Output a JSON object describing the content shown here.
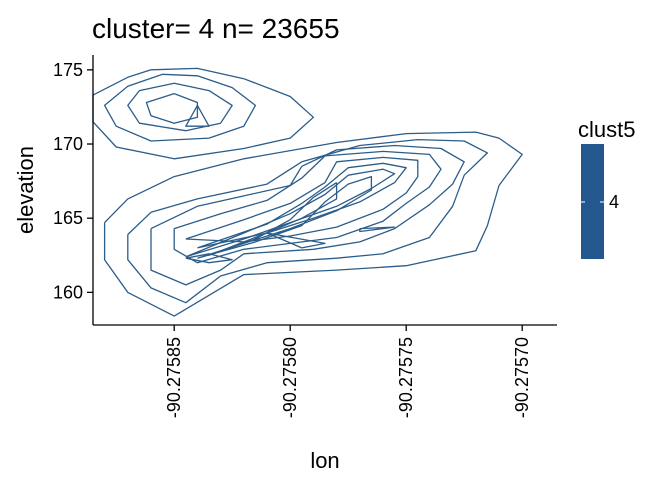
{
  "chart_data": {
    "type": "contour",
    "title": "cluster= 4 n= 23655",
    "xlabel": "lon",
    "ylabel": "elevation",
    "xlim": [
      -90.275885,
      -90.275685
    ],
    "ylim": [
      157.8,
      176.0
    ],
    "x_ticks": [
      -90.27585,
      -90.2758,
      -90.27575,
      -90.2757
    ],
    "x_tick_labels": [
      "-90.27585",
      "-90.27580",
      "-90.27575",
      "-90.27570"
    ],
    "y_ticks": [
      160,
      165,
      170,
      175
    ],
    "y_tick_labels": [
      "160",
      "165",
      "170",
      "175"
    ],
    "grid": false,
    "line_color": "#2b5d8a",
    "legend": {
      "title": "clust5",
      "tick_label": "4",
      "position": "right",
      "color": "#24578e"
    },
    "contours": [
      [
        [
          -90.27586,
          175.0
        ],
        [
          -90.27584,
          175.1
        ],
        [
          -90.27582,
          174.4
        ],
        [
          -90.2758,
          173.2
        ],
        [
          -90.27579,
          171.8
        ],
        [
          -90.2758,
          170.4
        ],
        [
          -90.27582,
          169.7
        ],
        [
          -90.27585,
          169.0
        ],
        [
          -90.275875,
          169.8
        ],
        [
          -90.275885,
          171.5
        ],
        [
          -90.275885,
          173.3
        ],
        [
          -90.27587,
          174.5
        ],
        [
          -90.27586,
          175.0
        ]
      ],
      [
        [
          -90.275855,
          174.7
        ],
        [
          -90.27584,
          174.6
        ],
        [
          -90.275825,
          173.8
        ],
        [
          -90.275815,
          172.6
        ],
        [
          -90.27582,
          171.2
        ],
        [
          -90.275835,
          170.4
        ],
        [
          -90.27586,
          170.2
        ],
        [
          -90.275875,
          171.2
        ],
        [
          -90.27588,
          172.6
        ],
        [
          -90.27587,
          173.9
        ],
        [
          -90.275855,
          174.7
        ]
      ],
      [
        [
          -90.27585,
          174.1
        ],
        [
          -90.275835,
          173.6
        ],
        [
          -90.275825,
          172.6
        ],
        [
          -90.27583,
          171.4
        ],
        [
          -90.275845,
          170.9
        ],
        [
          -90.275865,
          171.4
        ],
        [
          -90.27587,
          172.6
        ],
        [
          -90.275865,
          173.6
        ],
        [
          -90.27585,
          174.1
        ]
      ],
      [
        [
          -90.27585,
          173.4
        ],
        [
          -90.27584,
          172.8
        ],
        [
          -90.27584,
          171.8
        ],
        [
          -90.27585,
          171.4
        ],
        [
          -90.27586,
          171.9
        ],
        [
          -90.275862,
          172.8
        ],
        [
          -90.27585,
          173.4
        ]
      ],
      [
        [
          -90.27584,
          172.6
        ],
        [
          -90.275835,
          171.2
        ],
        [
          -90.275845,
          171.2
        ],
        [
          -90.27584,
          172.6
        ]
      ],
      [
        [
          -90.27588,
          164.7
        ],
        [
          -90.27587,
          166.3
        ],
        [
          -90.27585,
          167.8
        ],
        [
          -90.27582,
          169.0
        ],
        [
          -90.27578,
          170.1
        ],
        [
          -90.27575,
          170.7
        ],
        [
          -90.27572,
          170.8
        ],
        [
          -90.27571,
          170.4
        ],
        [
          -90.2757,
          169.3
        ],
        [
          -90.27571,
          167.2
        ],
        [
          -90.275715,
          164.5
        ],
        [
          -90.27572,
          162.8
        ],
        [
          -90.27575,
          161.8
        ],
        [
          -90.27578,
          161.5
        ],
        [
          -90.27582,
          161.2
        ],
        [
          -90.27585,
          158.4
        ],
        [
          -90.27587,
          160.0
        ],
        [
          -90.27588,
          162.2
        ],
        [
          -90.27588,
          164.7
        ]
      ],
      [
        [
          -90.27587,
          163.9
        ],
        [
          -90.27586,
          165.4
        ],
        [
          -90.27584,
          166.3
        ],
        [
          -90.27581,
          167.3
        ],
        [
          -90.275795,
          168.8
        ],
        [
          -90.27577,
          169.9
        ],
        [
          -90.275745,
          170.3
        ],
        [
          -90.275725,
          170.2
        ],
        [
          -90.275715,
          169.4
        ],
        [
          -90.275725,
          167.9
        ],
        [
          -90.27573,
          165.8
        ],
        [
          -90.27574,
          163.7
        ],
        [
          -90.27576,
          162.6
        ],
        [
          -90.27578,
          162.3
        ],
        [
          -90.27581,
          162.0
        ],
        [
          -90.27583,
          161.1
        ],
        [
          -90.275845,
          159.3
        ],
        [
          -90.27586,
          160.3
        ],
        [
          -90.27587,
          162.2
        ],
        [
          -90.27587,
          163.9
        ]
      ],
      [
        [
          -90.27586,
          164.3
        ],
        [
          -90.27584,
          165.8
        ],
        [
          -90.27582,
          166.5
        ],
        [
          -90.2758,
          167.2
        ],
        [
          -90.275795,
          168.5
        ],
        [
          -90.27578,
          169.6
        ],
        [
          -90.275755,
          169.9
        ],
        [
          -90.275735,
          169.7
        ],
        [
          -90.275725,
          168.8
        ],
        [
          -90.27573,
          167.3
        ],
        [
          -90.27574,
          165.9
        ],
        [
          -90.275755,
          164.3
        ],
        [
          -90.27577,
          163.4
        ],
        [
          -90.27579,
          162.9
        ],
        [
          -90.27582,
          162.6
        ],
        [
          -90.27583,
          161.5
        ],
        [
          -90.275845,
          160.5
        ],
        [
          -90.27586,
          161.5
        ],
        [
          -90.27586,
          164.3
        ]
      ],
      [
        [
          -90.27585,
          164.3
        ],
        [
          -90.27583,
          165.3
        ],
        [
          -90.27581,
          166.2
        ],
        [
          -90.275795,
          167.7
        ],
        [
          -90.275785,
          169.2
        ],
        [
          -90.27576,
          169.5
        ],
        [
          -90.27574,
          169.3
        ],
        [
          -90.275735,
          168.3
        ],
        [
          -90.27574,
          167.1
        ],
        [
          -90.27575,
          166.0
        ],
        [
          -90.27576,
          164.8
        ],
        [
          -90.27578,
          163.7
        ],
        [
          -90.2758,
          163.3
        ],
        [
          -90.27582,
          162.9
        ],
        [
          -90.27584,
          162.0
        ],
        [
          -90.27585,
          162.9
        ],
        [
          -90.27585,
          164.3
        ]
      ],
      [
        [
          -90.275845,
          163.6
        ],
        [
          -90.27582,
          164.9
        ],
        [
          -90.2758,
          166.0
        ],
        [
          -90.275785,
          167.4
        ],
        [
          -90.27578,
          168.8
        ],
        [
          -90.27576,
          169.1
        ],
        [
          -90.275745,
          168.9
        ],
        [
          -90.275745,
          167.8
        ],
        [
          -90.27575,
          166.7
        ],
        [
          -90.27576,
          165.6
        ],
        [
          -90.27578,
          164.4
        ],
        [
          -90.2758,
          163.8
        ],
        [
          -90.27582,
          163.4
        ],
        [
          -90.275845,
          163.6
        ]
      ],
      [
        [
          -90.27584,
          163.0
        ],
        [
          -90.27581,
          164.6
        ],
        [
          -90.275795,
          166.0
        ],
        [
          -90.275785,
          167.1
        ],
        [
          -90.275775,
          168.4
        ],
        [
          -90.27576,
          168.7
        ],
        [
          -90.27575,
          168.4
        ],
        [
          -90.275755,
          167.4
        ],
        [
          -90.27577,
          166.1
        ],
        [
          -90.27579,
          165.0
        ],
        [
          -90.27581,
          164.0
        ],
        [
          -90.27584,
          163.0
        ]
      ],
      [
        [
          -90.275845,
          162.4
        ],
        [
          -90.27582,
          164.0
        ],
        [
          -90.2758,
          165.3
        ],
        [
          -90.275785,
          166.6
        ],
        [
          -90.275775,
          167.9
        ],
        [
          -90.27576,
          168.3
        ],
        [
          -90.275755,
          168.0
        ],
        [
          -90.275765,
          167.0
        ],
        [
          -90.27578,
          165.8
        ],
        [
          -90.2758,
          164.7
        ],
        [
          -90.27582,
          163.6
        ],
        [
          -90.275845,
          162.4
        ]
      ],
      [
        [
          -90.27584,
          162.3
        ],
        [
          -90.275815,
          163.4
        ],
        [
          -90.275795,
          164.5
        ],
        [
          -90.275785,
          166.1
        ],
        [
          -90.275775,
          167.3
        ],
        [
          -90.275765,
          167.8
        ],
        [
          -90.275765,
          166.9
        ],
        [
          -90.27578,
          165.5
        ],
        [
          -90.2758,
          164.3
        ],
        [
          -90.27582,
          163.3
        ],
        [
          -90.27584,
          162.3
        ]
      ],
      [
        [
          -90.27578,
          167.4
        ],
        [
          -90.27578,
          166.3
        ],
        [
          -90.275795,
          165.0
        ],
        [
          -90.27581,
          164.0
        ],
        [
          -90.275835,
          162.5
        ],
        [
          -90.275815,
          163.6
        ],
        [
          -90.2758,
          164.9
        ],
        [
          -90.27579,
          166.4
        ],
        [
          -90.27578,
          167.4
        ]
      ],
      [
        [
          -90.275845,
          162.3
        ],
        [
          -90.275835,
          162.6
        ],
        [
          -90.275825,
          162.2
        ],
        [
          -90.275835,
          162.0
        ],
        [
          -90.275845,
          162.3
        ]
      ],
      [
        [
          -90.27581,
          164.0
        ],
        [
          -90.275795,
          163.0
        ],
        [
          -90.275785,
          163.3
        ],
        [
          -90.27581,
          164.0
        ]
      ],
      [
        [
          -90.27577,
          164.3
        ],
        [
          -90.275755,
          164.4
        ],
        [
          -90.27577,
          164.1
        ],
        [
          -90.27577,
          164.3
        ]
      ]
    ]
  }
}
